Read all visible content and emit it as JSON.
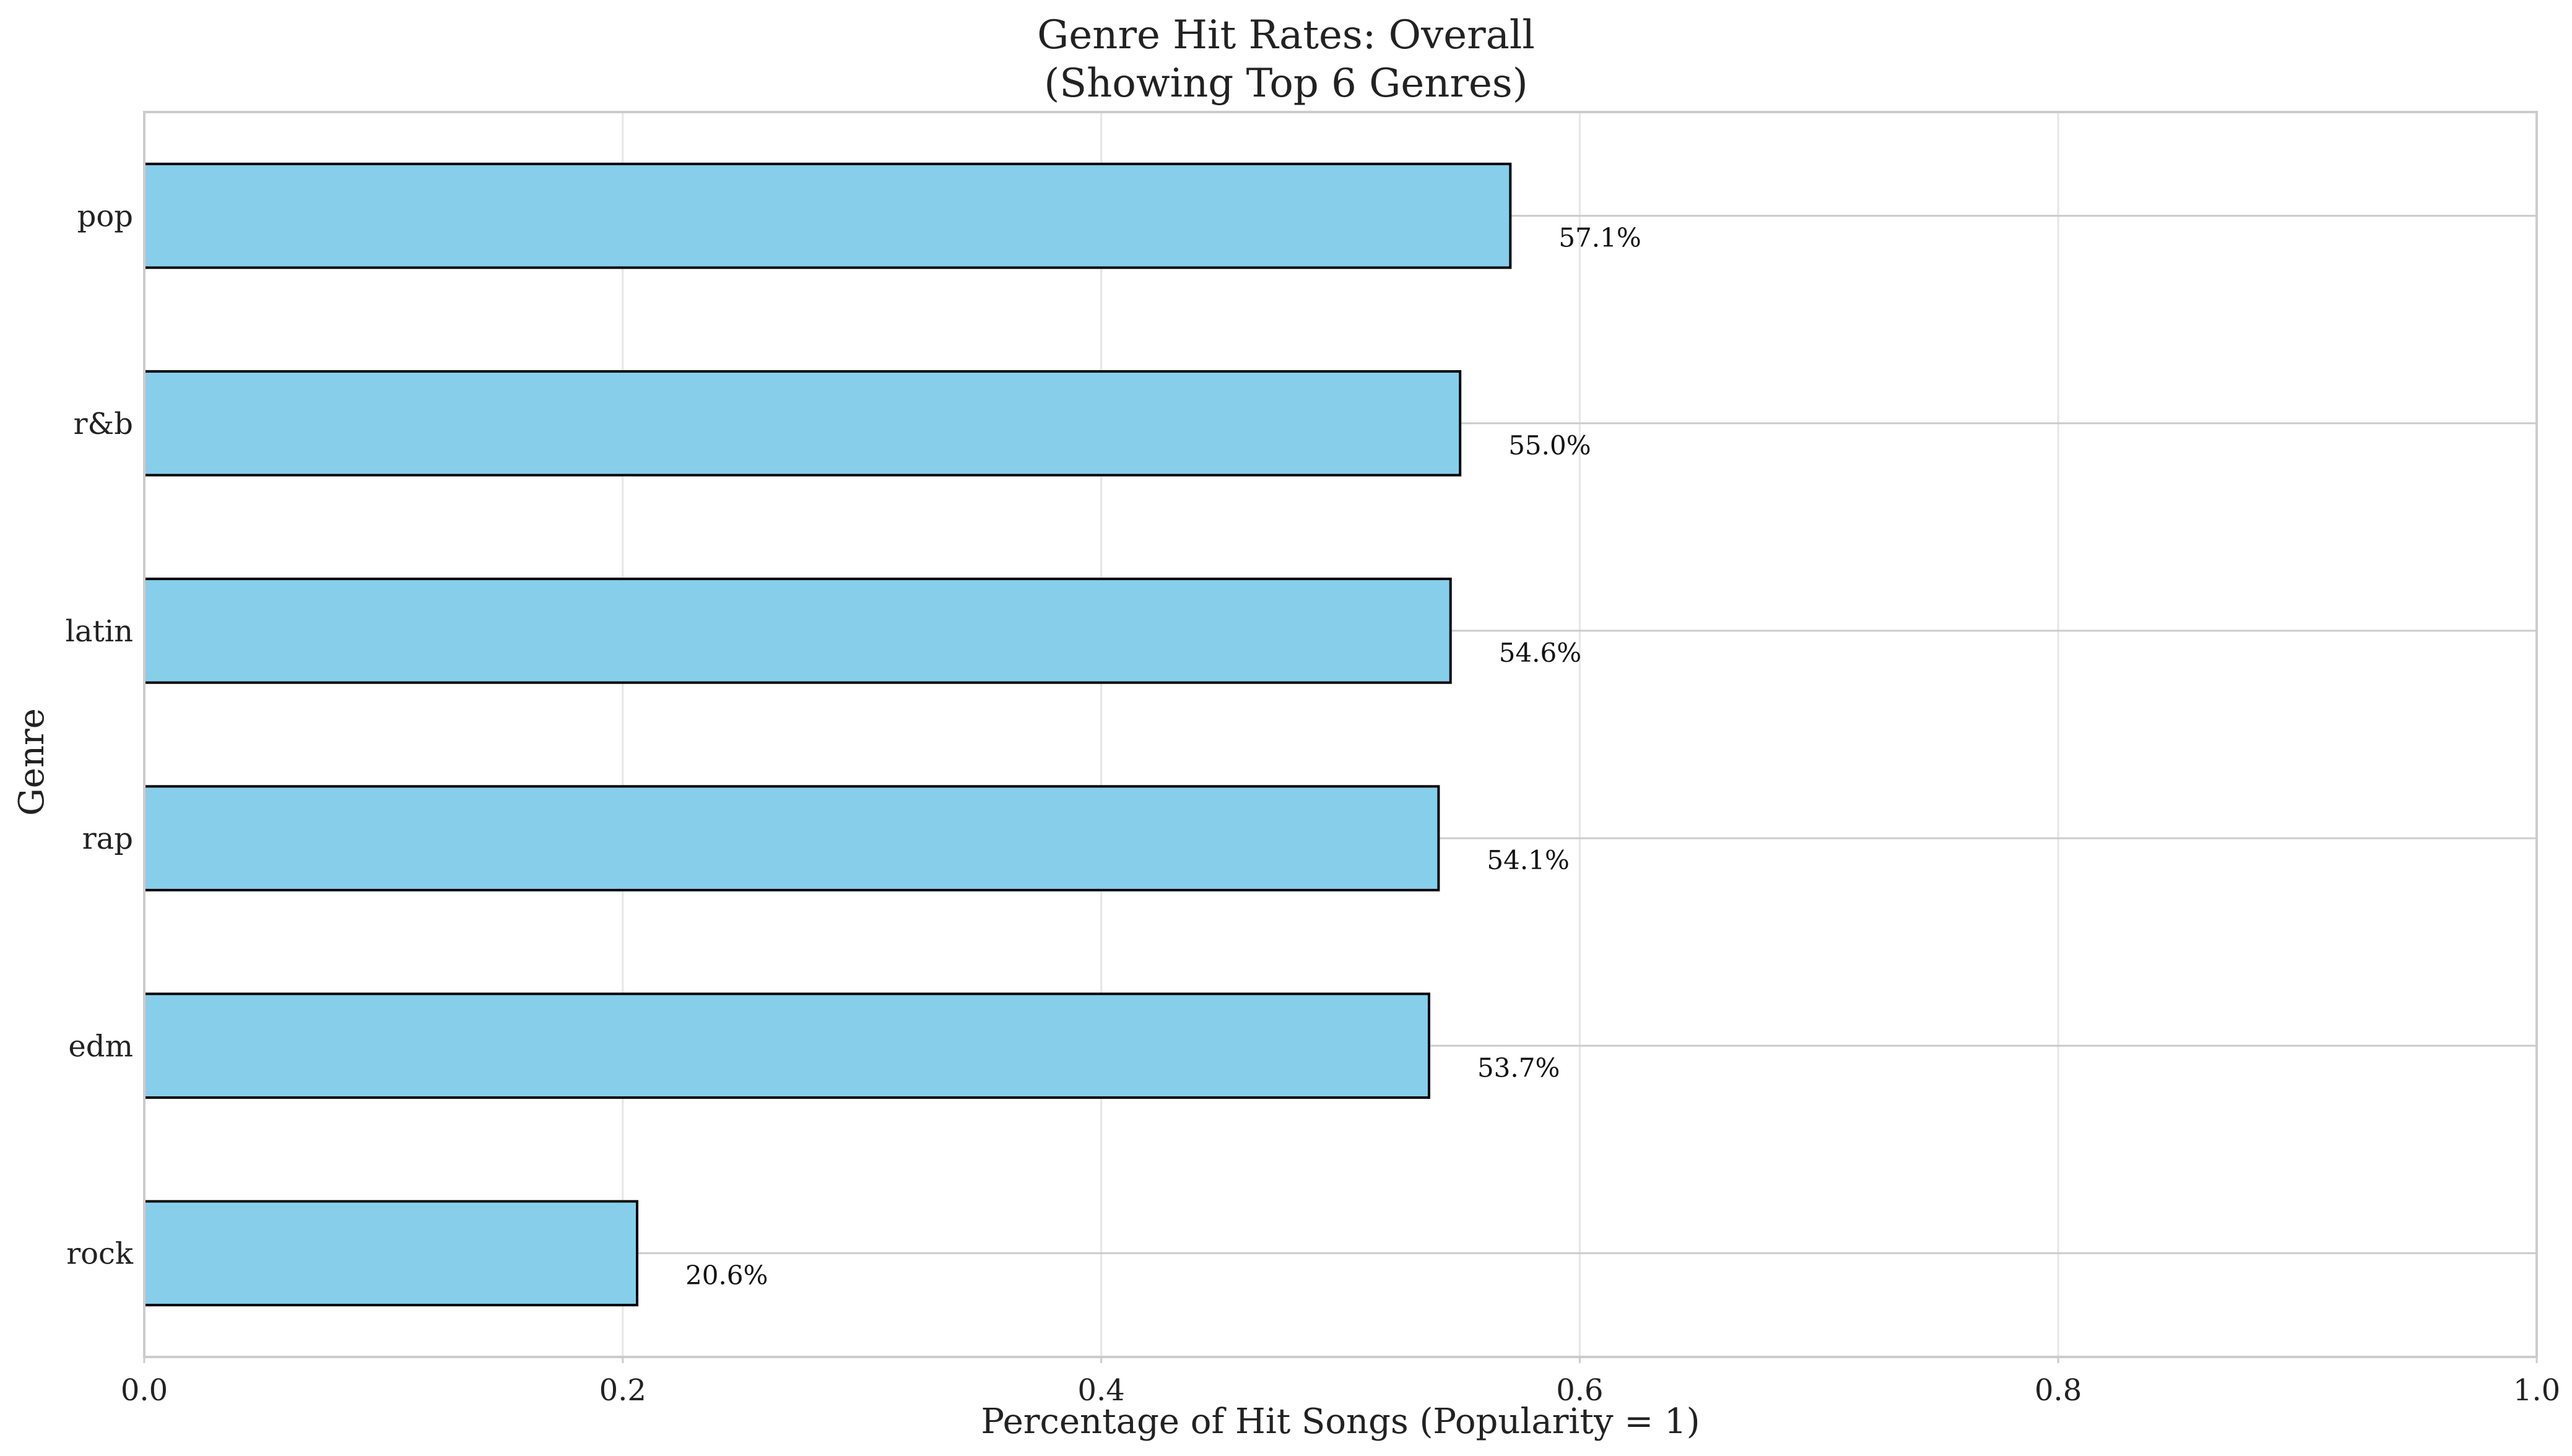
{
  "chart_data": {
    "type": "bar",
    "orientation": "horizontal",
    "title": "Genre Hit Rates: Overall",
    "subtitle": "(Showing Top 6 Genres)",
    "xlabel": "Percentage of Hit Songs (Popularity = 1)",
    "ylabel": "Genre",
    "categories": [
      "pop",
      "r&b",
      "latin",
      "rap",
      "edm",
      "rock"
    ],
    "values": [
      0.571,
      0.55,
      0.546,
      0.541,
      0.537,
      0.206
    ],
    "value_labels": [
      "57.1%",
      "55.0%",
      "54.6%",
      "54.1%",
      "53.7%",
      "20.6%"
    ],
    "xlim": [
      0,
      1.0
    ],
    "xticks": [
      0.0,
      0.2,
      0.4,
      0.6,
      0.8,
      1.0
    ],
    "xtick_labels": [
      "0.0",
      "0.2",
      "0.4",
      "0.6",
      "0.8",
      "1.0"
    ],
    "grid": true,
    "bar_color": "#87CEEB",
    "bar_edge_color": "#000000",
    "grid_color": "#e6e6e6",
    "row_line_color": "#cccccc",
    "axis_color": "#cccccc",
    "text_color": "#222222"
  }
}
